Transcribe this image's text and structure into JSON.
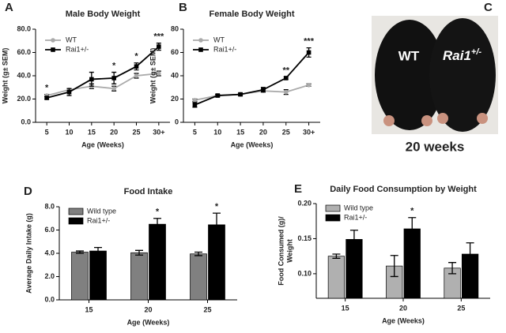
{
  "chart_data": [
    {
      "type": "line",
      "panel": "A",
      "title": "Male Body Weight",
      "xlabel": "Age (Weeks)",
      "ylabel": "Weight (g± SEM)",
      "categories": [
        "5",
        "10",
        "15",
        "20",
        "25",
        "30+"
      ],
      "series": [
        {
          "name": "WT",
          "color": "#aaaaaa",
          "values": [
            23,
            28,
            31,
            29,
            40,
            42
          ],
          "errors": [
            1,
            1,
            2,
            2,
            2,
            2
          ]
        },
        {
          "name": "Rai1+/-",
          "color": "#000000",
          "values": [
            21,
            26,
            37,
            38,
            48,
            65
          ],
          "errors": [
            1,
            3,
            6,
            5,
            3,
            3
          ]
        }
      ],
      "ylim": [
        0,
        80
      ],
      "yticks": [
        {
          "value": 0,
          "label": "0.0"
        },
        {
          "value": 20,
          "label": "20.0"
        },
        {
          "value": 40,
          "label": "40.0"
        },
        {
          "value": 60,
          "label": "60.0"
        },
        {
          "value": 80,
          "label": "80.0"
        }
      ],
      "legend": "upper left",
      "annotations": [
        {
          "text": "*",
          "x": "5"
        },
        {
          "text": "*",
          "x": "20"
        },
        {
          "text": "*",
          "x": "25"
        },
        {
          "text": "***",
          "x": "30+"
        }
      ]
    },
    {
      "type": "line",
      "panel": "B",
      "title": "Female Body Weight",
      "xlabel": "Age (Weeks)",
      "ylabel": "Weight (g± SEM)",
      "categories": [
        "5",
        "10",
        "15",
        "20",
        "25",
        "30+"
      ],
      "series": [
        {
          "name": "WT",
          "color": "#aaaaaa",
          "values": [
            19,
            23,
            24,
            27,
            26,
            32
          ],
          "errors": [
            1,
            1,
            1,
            1,
            2,
            1
          ]
        },
        {
          "name": "Rai1+/-",
          "color": "#000000",
          "values": [
            15,
            23,
            24,
            28,
            38,
            60
          ],
          "errors": [
            2,
            1,
            1,
            2,
            1,
            4
          ]
        }
      ],
      "ylim": [
        0,
        80
      ],
      "yticks": [
        0,
        20,
        40,
        60,
        80
      ],
      "legend": "upper left",
      "annotations": [
        {
          "text": "**",
          "x": "25"
        },
        {
          "text": "***",
          "x": "30+"
        }
      ]
    },
    {
      "type": "bar",
      "panel": "D",
      "title": "Food Intake",
      "xlabel": "Age (Weeks)",
      "ylabel": "Average Daily Intake (g)",
      "categories": [
        "15",
        "20",
        "25"
      ],
      "series": [
        {
          "name": "Wild type",
          "color": "#808080",
          "values": [
            4.1,
            4.05,
            3.95
          ],
          "errors": [
            0.1,
            0.2,
            0.15
          ]
        },
        {
          "name": "Rai1+/-",
          "color": "#000000",
          "values": [
            4.2,
            6.5,
            6.45
          ],
          "errors": [
            0.3,
            0.5,
            1.0
          ]
        }
      ],
      "ylim": [
        0,
        8
      ],
      "yticks": [
        {
          "value": 0,
          "label": "0.0"
        },
        {
          "value": 2,
          "label": "2.0"
        },
        {
          "value": 4,
          "label": "4.0"
        },
        {
          "value": 6,
          "label": "6.0"
        },
        {
          "value": 8,
          "label": "8.0"
        }
      ],
      "legend": "upper left",
      "annotations": [
        {
          "text": "*",
          "x": "20"
        },
        {
          "text": "*",
          "x": "25"
        }
      ]
    },
    {
      "type": "bar",
      "panel": "E",
      "title": "Daily Food Consumption by Weight",
      "xlabel": "Age (Weeks)",
      "ylabel": [
        "Food Consumed (g)/",
        "Weight"
      ],
      "categories": [
        "15",
        "20",
        "25"
      ],
      "series": [
        {
          "name": "Wild type",
          "color": "#b0b0b0",
          "values": [
            0.125,
            0.111,
            0.108
          ],
          "errors": [
            0.003,
            0.015,
            0.008
          ]
        },
        {
          "name": "Rai1+/-",
          "color": "#000000",
          "values": [
            0.149,
            0.164,
            0.128
          ],
          "errors": [
            0.013,
            0.016,
            0.016
          ]
        }
      ],
      "ylim": [
        0.065,
        0.2
      ],
      "yticks": [
        {
          "value": 0.1,
          "label": "0.10"
        },
        0.15,
        {
          "value": 0.2,
          "label": "0.20"
        }
      ],
      "legend": "upper left",
      "annotations": [
        {
          "text": "*",
          "x": "20"
        }
      ]
    }
  ],
  "photo": {
    "panel": "C",
    "label_wt": "WT",
    "label_mutant": "Rai1",
    "label_mutant_sup": "+/-",
    "caption": "20 weeks"
  }
}
